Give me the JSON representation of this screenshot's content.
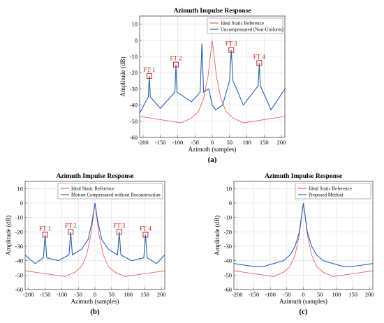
{
  "chart_data": [
    {
      "type": "line",
      "title": "Azimuth Impulse Response",
      "xlabel": "Azimuth (samples)",
      "ylabel": "Amplitude (dB)",
      "xlim": [
        -210,
        210
      ],
      "ylim": [
        -60,
        15
      ],
      "xticks": [
        -200,
        -150,
        -100,
        -50,
        0,
        50,
        100,
        150,
        200
      ],
      "yticks": [
        10,
        0,
        -10,
        -20,
        -30,
        -40,
        -50,
        -60
      ],
      "grid": true,
      "legend_position": "top-right",
      "panel_label": "(a)",
      "series": [
        {
          "name": "Ideal Static Reference",
          "color": "#e06060",
          "x": [
            -210,
            -180,
            -150,
            -120,
            -90,
            -60,
            -40,
            -25,
            -12,
            -5,
            0,
            5,
            12,
            25,
            40,
            60,
            90,
            120,
            150,
            180,
            210
          ],
          "y": [
            -47,
            -48,
            -49,
            -50,
            -51,
            -48,
            -44,
            -36,
            -22,
            -9,
            0,
            -9,
            -22,
            -36,
            -44,
            -48,
            -51,
            -50,
            -49,
            -48,
            -47
          ]
        },
        {
          "name": "Uncompensated (Non-Uniform)",
          "color": "#2a5fb5",
          "x": [
            -210,
            -185,
            -182,
            -179,
            -150,
            -108,
            -105,
            -102,
            -60,
            -35,
            -30,
            -25,
            -10,
            0,
            10,
            30,
            50,
            55,
            60,
            90,
            133,
            136,
            139,
            170,
            210
          ],
          "y": [
            -45,
            -35,
            -22,
            -35,
            -42,
            -32,
            -15,
            -32,
            -38,
            -32,
            -2,
            -32,
            -30,
            -40,
            -43,
            -40,
            -25,
            -6,
            -25,
            -40,
            -28,
            -14,
            -28,
            -43,
            -30
          ]
        }
      ],
      "annotations": [
        {
          "label": "FT 1",
          "x": -182,
          "y": -22
        },
        {
          "label": "FT 2",
          "x": -105,
          "y": -15
        },
        {
          "label": "FT 3",
          "x": 55,
          "y": -6
        },
        {
          "label": "FT 4",
          "x": 136,
          "y": -14
        }
      ]
    },
    {
      "type": "line",
      "title": "Azimuth Impulse Response",
      "xlabel": "Azimuth (samples)",
      "ylabel": "Amplitude (dB)",
      "xlim": [
        -210,
        210
      ],
      "ylim": [
        -60,
        15
      ],
      "xticks": [
        -200,
        -150,
        -100,
        -50,
        0,
        50,
        100,
        150,
        200
      ],
      "yticks": [
        10,
        0,
        -10,
        -20,
        -30,
        -40,
        -50,
        -60
      ],
      "grid": true,
      "legend_position": "top-right",
      "panel_label": "(b)",
      "series": [
        {
          "name": "Ideal Static Reference",
          "color": "#e06060",
          "x": [
            -210,
            -180,
            -150,
            -120,
            -90,
            -60,
            -40,
            -25,
            -12,
            -5,
            0,
            5,
            12,
            25,
            40,
            60,
            90,
            120,
            150,
            180,
            210
          ],
          "y": [
            -47,
            -48,
            -49,
            -50,
            -51,
            -48,
            -44,
            -36,
            -22,
            -9,
            0,
            -9,
            -22,
            -36,
            -44,
            -48,
            -51,
            -50,
            -49,
            -48,
            -47
          ]
        },
        {
          "name": "Motion Compensated without Reconstruction",
          "color": "#2a5fb5",
          "x": [
            -210,
            -180,
            -155,
            -150,
            -145,
            -110,
            -78,
            -73,
            -68,
            -40,
            -20,
            -8,
            0,
            8,
            20,
            40,
            68,
            73,
            78,
            110,
            147,
            152,
            157,
            185,
            210
          ],
          "y": [
            -36,
            -42,
            -38,
            -22,
            -38,
            -40,
            -36,
            -20,
            -36,
            -32,
            -25,
            -12,
            0,
            -12,
            -25,
            -32,
            -36,
            -20,
            -36,
            -40,
            -38,
            -22,
            -38,
            -42,
            -36
          ]
        }
      ],
      "annotations": [
        {
          "label": "FT 1",
          "x": -150,
          "y": -22
        },
        {
          "label": "FT 2",
          "x": -73,
          "y": -20
        },
        {
          "label": "FT 3",
          "x": 73,
          "y": -20
        },
        {
          "label": "FT 4",
          "x": 152,
          "y": -22
        }
      ]
    },
    {
      "type": "line",
      "title": "Azimuth Impulse Response",
      "xlabel": "Azimuth (samples)",
      "ylabel": "Amplitude (dB)",
      "xlim": [
        -210,
        210
      ],
      "ylim": [
        -60,
        15
      ],
      "xticks": [
        -200,
        -150,
        -100,
        -50,
        0,
        50,
        100,
        150,
        200
      ],
      "yticks": [
        10,
        0,
        -10,
        -20,
        -30,
        -40,
        -50,
        -60
      ],
      "grid": true,
      "legend_position": "top-right",
      "panel_label": "(c)",
      "series": [
        {
          "name": "Ideal Static Reference",
          "color": "#e06060",
          "x": [
            -210,
            -180,
            -150,
            -120,
            -90,
            -60,
            -40,
            -25,
            -12,
            -5,
            0,
            5,
            12,
            25,
            40,
            60,
            90,
            120,
            150,
            180,
            210
          ],
          "y": [
            -47,
            -48,
            -49,
            -50,
            -51,
            -48,
            -44,
            -36,
            -22,
            -9,
            0,
            -9,
            -22,
            -36,
            -44,
            -48,
            -51,
            -50,
            -49,
            -48,
            -47
          ]
        },
        {
          "name": "Proposed Method",
          "color": "#2a5fb5",
          "x": [
            -210,
            -180,
            -150,
            -120,
            -90,
            -60,
            -40,
            -25,
            -12,
            -5,
            0,
            5,
            12,
            25,
            40,
            60,
            90,
            120,
            150,
            180,
            210
          ],
          "y": [
            -42,
            -43,
            -44,
            -44,
            -42,
            -40,
            -36,
            -30,
            -20,
            -8,
            0,
            -8,
            -20,
            -30,
            -36,
            -40,
            -42,
            -44,
            -44,
            -43,
            -42
          ]
        }
      ],
      "annotations": []
    }
  ]
}
